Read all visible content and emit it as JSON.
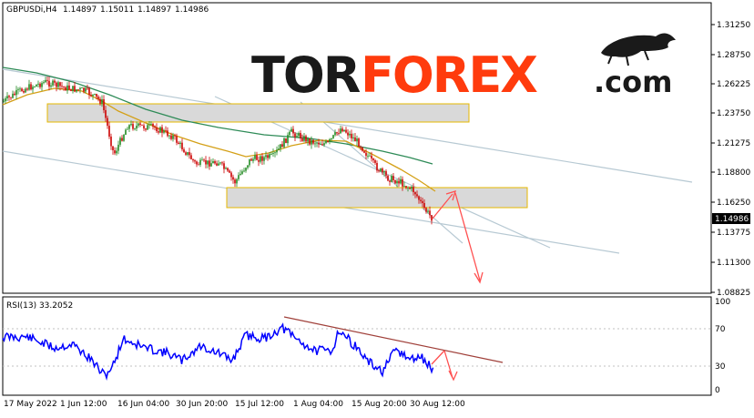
{
  "symbol_header": {
    "symbol": "GBPUSDi,H4",
    "open": "1.14897",
    "high": "1.15011",
    "low": "1.14897",
    "close": "1.14986"
  },
  "logo": {
    "part1": "TOR",
    "part2": "FOREX",
    "part3": ".com",
    "color_dark": "#1a1a1a",
    "color_accent": "#ff3b0d"
  },
  "price_axis": {
    "ticks": [
      "1.31250",
      "1.28750",
      "1.26225",
      "1.23750",
      "1.21275",
      "1.18800",
      "1.16250",
      "1.13775",
      "1.11300",
      "1.08825"
    ],
    "current_price": "1.14986"
  },
  "rsi": {
    "label": "RSI(13) 33.2052",
    "levels": [
      "100",
      "70",
      "30",
      "0"
    ]
  },
  "time_axis": {
    "labels": [
      "17 May 2022",
      "1 Jun 12:00",
      "16 Jun 04:00",
      "30 Jun 20:00",
      "15 Jul 12:00",
      "1 Aug 04:00",
      "15 Aug 20:00",
      "30 Aug 12:00"
    ]
  },
  "colors": {
    "bull_candle": "#228b22",
    "bear_candle": "#cc0000",
    "ma_slow": "#2e8b57",
    "ma_fast": "#d4a017",
    "channel": "#b0c4d0",
    "zone_fill": "#d9d9d9",
    "zone_border": "#e6b800",
    "forecast_arrow": "#ff5050",
    "rsi_line": "#0000ff",
    "rsi_trend": "#a0403a"
  }
}
